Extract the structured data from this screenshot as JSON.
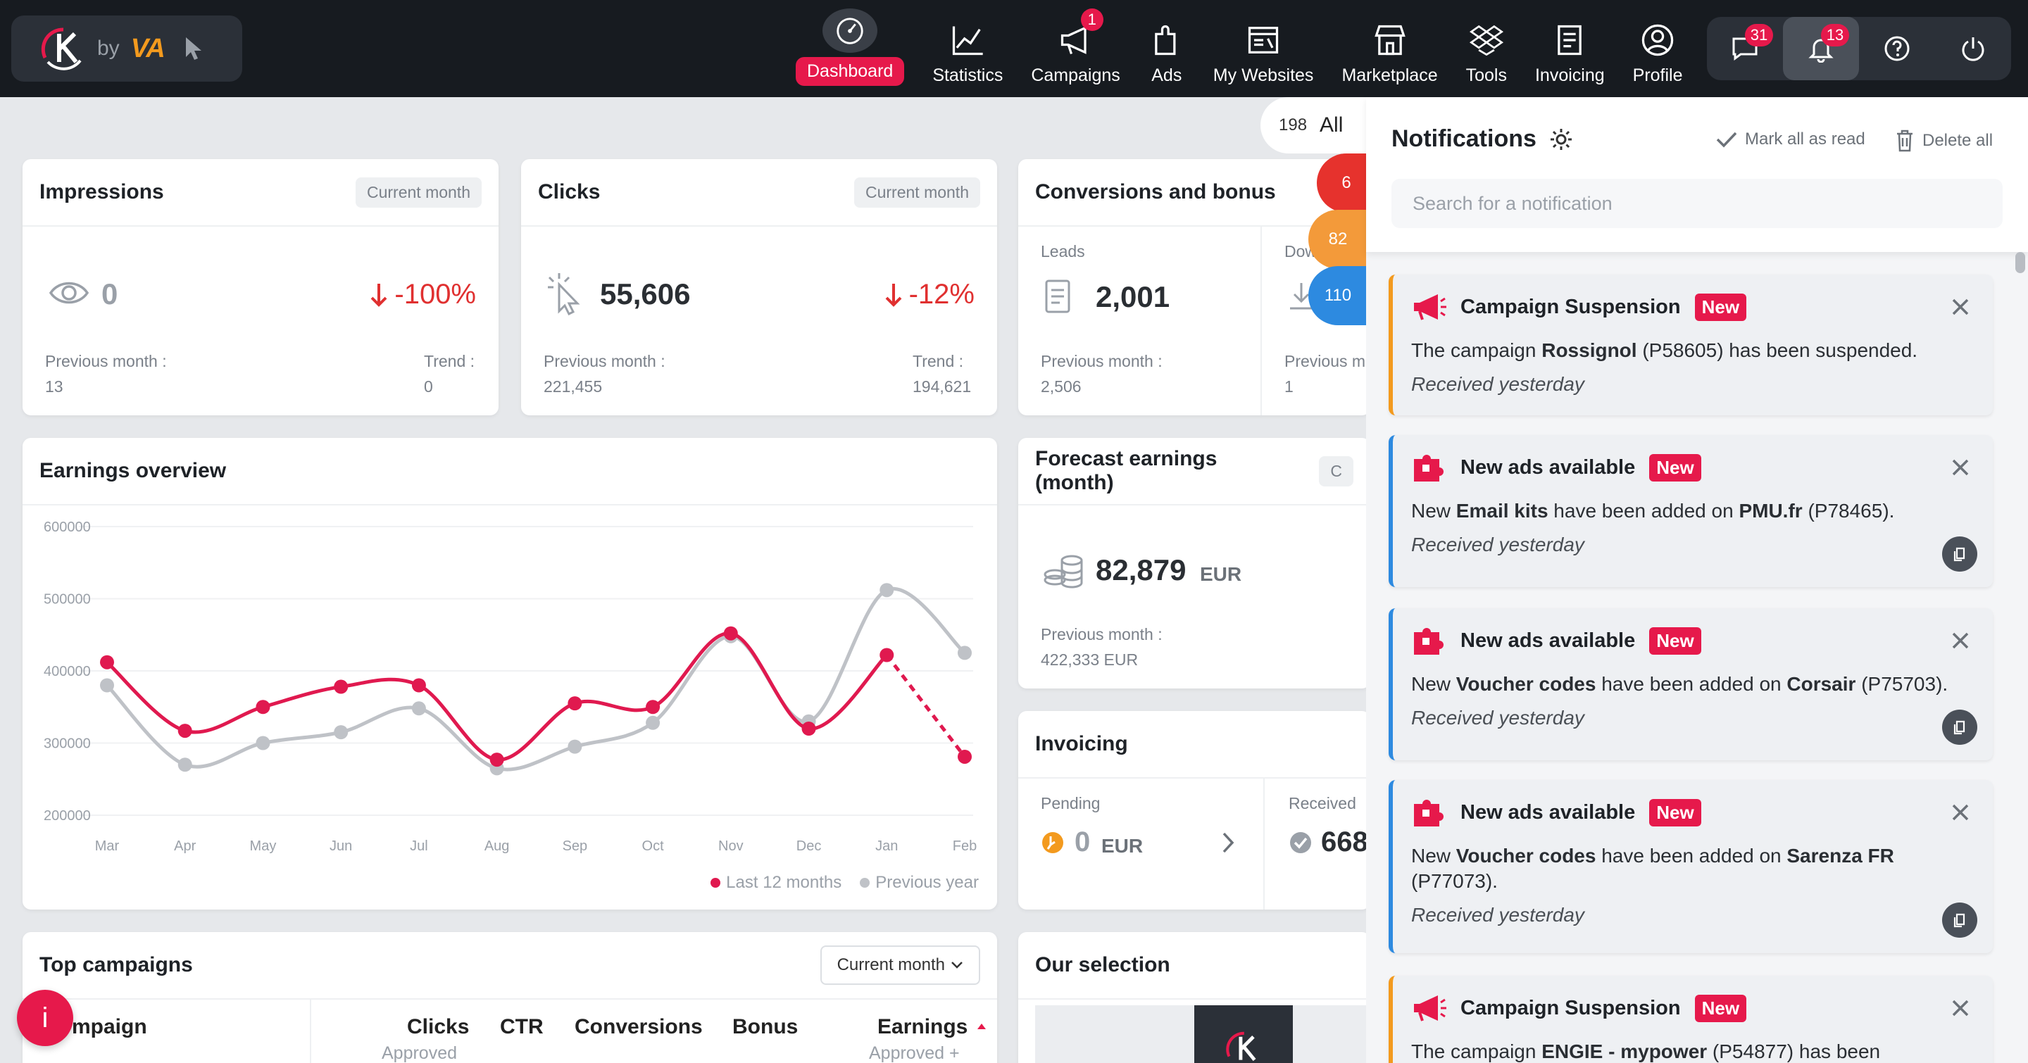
{
  "brand": {
    "by": "by",
    "va": "VA"
  },
  "nav": [
    {
      "label": "Dashboard",
      "icon": "speedometer-icon",
      "active": true
    },
    {
      "label": "Statistics",
      "icon": "chart-line-icon"
    },
    {
      "label": "Campaigns",
      "icon": "megaphone-icon",
      "badge": "1"
    },
    {
      "label": "Ads",
      "icon": "puzzle-icon"
    },
    {
      "label": "My Websites",
      "icon": "website-icon"
    },
    {
      "label": "Marketplace",
      "icon": "store-icon"
    },
    {
      "label": "Tools",
      "icon": "dropbox-icon"
    },
    {
      "label": "Invoicing",
      "icon": "document-icon"
    },
    {
      "label": "Profile",
      "icon": "user-circle-icon"
    }
  ],
  "right_tools": {
    "messages_badge": "31",
    "notifications_badge": "13"
  },
  "impressions": {
    "title": "Impressions",
    "period": "Current month",
    "value": "0",
    "trend": "-100%",
    "prev_label": "Previous month :",
    "prev_value": "13",
    "trend_label": "Trend :",
    "trend_value": "0"
  },
  "clicks": {
    "title": "Clicks",
    "period": "Current month",
    "value": "55,606",
    "trend": "-12%",
    "prev_label": "Previous month :",
    "prev_value": "221,455",
    "trend_label": "Trend :",
    "trend_value": "194,621"
  },
  "conversions": {
    "title": "Conversions and bonus",
    "leads_label": "Leads",
    "leads_value": "2,001",
    "prev_label": "Previous month :",
    "prev_value": "2,506",
    "down_label": "Dow",
    "prev2_label": "Previous m",
    "prev2_value": "1"
  },
  "filter": {
    "count": "198",
    "label": "All",
    "b1": "6",
    "b2": "82",
    "b3": "110"
  },
  "earnings": {
    "title": "Earnings overview",
    "legend_a": "Last 12 months",
    "legend_b": "Previous year"
  },
  "chart_data": {
    "type": "line",
    "categories": [
      "Mar",
      "Apr",
      "May",
      "Jun",
      "Jul",
      "Aug",
      "Sep",
      "Oct",
      "Nov",
      "Dec",
      "Jan",
      "Feb"
    ],
    "y_ticks": [
      "600000",
      "500000",
      "400000",
      "300000",
      "200000"
    ],
    "ylim": [
      200000,
      600000
    ],
    "series": [
      {
        "name": "Last 12 months",
        "color": "#e0194f",
        "values": [
          412000,
          317000,
          350000,
          378000,
          380000,
          277000,
          355000,
          350000,
          452000,
          320000,
          422000,
          281000
        ],
        "dashed_last": true
      },
      {
        "name": "Previous year",
        "color": "#bfc2c7",
        "values": [
          380000,
          270000,
          300000,
          315000,
          348000,
          265000,
          295000,
          328000,
          448000,
          330000,
          512000,
          425000
        ]
      }
    ]
  },
  "forecast": {
    "title": "Forecast earnings (month)",
    "value": "82,879",
    "currency": "EUR",
    "prev_label": "Previous month :",
    "prev_value": "422,333 EUR",
    "cut": "C"
  },
  "invoicing": {
    "title": "Invoicing",
    "pending_label": "Pending",
    "pending_value": "0",
    "pending_cur": "EUR",
    "received_label": "Received",
    "received_value": "668"
  },
  "top_campaigns": {
    "title": "Top campaigns",
    "period": "Current month",
    "cols": [
      "mpaign",
      "Clicks",
      "CTR",
      "Conversions",
      "Bonus",
      "Earnings"
    ],
    "sub_clicks": "Approved",
    "sub_earnings": "Approved +"
  },
  "our_selection": {
    "title": "Our selection"
  },
  "notifications": {
    "title": "Notifications",
    "mark_all": "Mark all as read",
    "delete_all": "Delete all",
    "search_placeholder": "Search for a notification",
    "items": [
      {
        "type": "orange",
        "icon": "megaphone-icon",
        "title": "Campaign Suspension",
        "tag": "New",
        "parts": [
          "The campaign ",
          "Rossignol",
          " (P58605) has been suspended."
        ],
        "received": "Received yesterday"
      },
      {
        "type": "blue",
        "icon": "puzzle-icon",
        "title": "New ads available",
        "tag": "New",
        "parts": [
          "New ",
          "Email kits",
          " have been added on ",
          "PMU.fr",
          " (P78465)."
        ],
        "received": "Received yesterday"
      },
      {
        "type": "blue",
        "icon": "puzzle-icon",
        "title": "New ads available",
        "tag": "New",
        "parts": [
          "New ",
          "Voucher codes",
          " have been added on ",
          "Corsair",
          " (P75703)."
        ],
        "received": "Received yesterday"
      },
      {
        "type": "blue",
        "icon": "puzzle-icon",
        "title": "New ads available",
        "tag": "New",
        "parts": [
          "New ",
          "Voucher codes",
          " have been added on ",
          "Sarenza FR",
          " (P77073)."
        ],
        "received": "Received yesterday"
      },
      {
        "type": "orange",
        "icon": "megaphone-icon",
        "title": "Campaign Suspension",
        "tag": "New",
        "parts": [
          "The campaign ",
          "ENGIE - mypower",
          " (P54877) has been"
        ],
        "received": ""
      }
    ]
  }
}
